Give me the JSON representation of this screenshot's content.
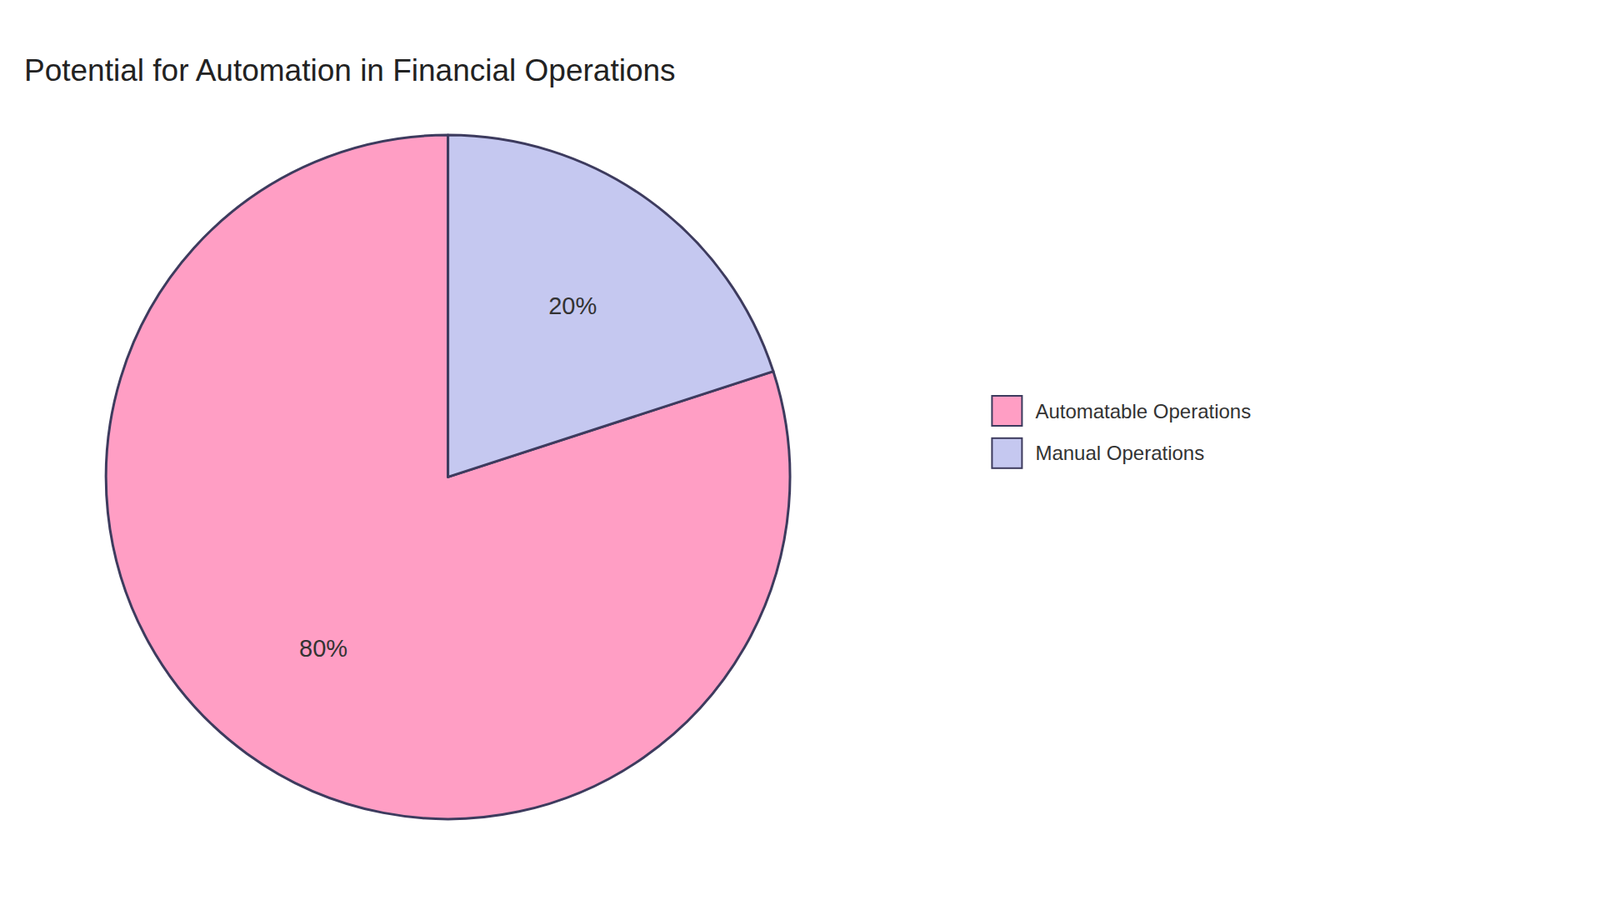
{
  "chart_data": {
    "type": "pie",
    "title": "Potential for Automation in Financial Operations",
    "categories": [
      "Automatable Operations",
      "Manual Operations"
    ],
    "values": [
      80,
      20
    ],
    "value_labels": [
      "80%",
      "20%"
    ],
    "colors": [
      "#FF9EC4",
      "#C5C8F0"
    ],
    "data_labels": true,
    "legend": "right"
  }
}
